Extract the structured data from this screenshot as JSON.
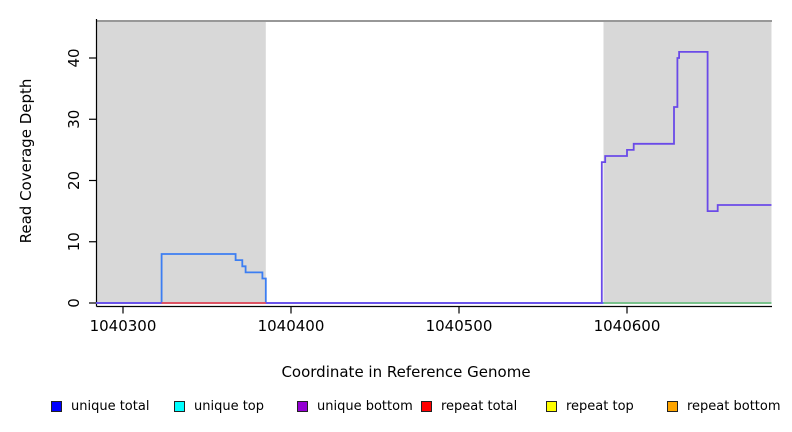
{
  "chart_data": {
    "type": "line",
    "subtype": "step-coverage",
    "title": "",
    "xlabel": "Coordinate in Reference Genome",
    "ylabel": "Read Coverage Depth",
    "xlim": [
      1040284,
      1040686
    ],
    "ylim": [
      0,
      46
    ],
    "grid": false,
    "x_ticks": [
      {
        "value": 1040300,
        "label": "1040300"
      },
      {
        "value": 1040400,
        "label": "1040400"
      },
      {
        "value": 1040500,
        "label": "1040500"
      },
      {
        "value": 1040600,
        "label": "1040600"
      }
    ],
    "y_ticks": [
      {
        "value": 0,
        "label": "0"
      },
      {
        "value": 10,
        "label": "10"
      },
      {
        "value": 20,
        "label": "20"
      },
      {
        "value": 30,
        "label": "30"
      },
      {
        "value": 40,
        "label": "40"
      }
    ],
    "region_color": "#d8d8d8",
    "top_border_color": "#8a8a8a",
    "axis_color": "#000000",
    "shaded_regions": [
      {
        "from": 1040284,
        "to": 1040385
      },
      {
        "from": 1040586,
        "to": 1040686
      }
    ],
    "series": [
      {
        "id": "unique-total",
        "name": "unique total",
        "line_color": "#3c7ef2",
        "steps": [
          [
            1040284,
            0
          ],
          [
            1040323,
            8
          ],
          [
            1040367,
            7
          ],
          [
            1040371,
            6
          ],
          [
            1040373,
            5
          ],
          [
            1040383,
            4
          ],
          [
            1040385,
            0
          ],
          [
            1040686,
            0
          ]
        ]
      },
      {
        "id": "unique-bottom",
        "name": "unique bottom",
        "line_color": "#6a4ae8",
        "steps": [
          [
            1040284,
            0
          ],
          [
            1040585,
            23
          ],
          [
            1040587,
            24
          ],
          [
            1040600,
            25
          ],
          [
            1040604,
            26
          ],
          [
            1040628,
            32
          ],
          [
            1040630,
            40
          ],
          [
            1040631,
            41
          ],
          [
            1040648,
            15
          ],
          [
            1040654,
            16
          ],
          [
            1040686,
            16
          ]
        ]
      },
      {
        "id": "repeat-total",
        "name": "repeat total",
        "line_color": "#e85050",
        "steps": [
          [
            1040323,
            0
          ],
          [
            1040385,
            0
          ]
        ]
      },
      {
        "id": "green-baseline",
        "name": "unlabeled green baseline segment",
        "line_color": "#7dc87d",
        "steps": [
          [
            1040586,
            0
          ],
          [
            1040686,
            0
          ]
        ]
      }
    ]
  },
  "legend": {
    "items": [
      {
        "label": "unique total",
        "color": "#0000ff"
      },
      {
        "label": "unique top",
        "color": "#00ffff"
      },
      {
        "label": "unique bottom",
        "color": "#9400d3"
      },
      {
        "label": "repeat total",
        "color": "#ff0000"
      },
      {
        "label": "repeat top",
        "color": "#ffff00"
      },
      {
        "label": "repeat bottom",
        "color": "#ffa500"
      }
    ]
  }
}
